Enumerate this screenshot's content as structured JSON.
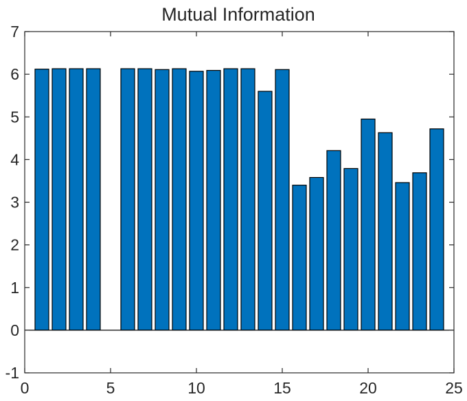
{
  "chart_data": {
    "type": "bar",
    "title": "Mutual Information",
    "xlabel": "",
    "ylabel": "",
    "x": [
      1,
      2,
      3,
      4,
      5,
      6,
      7,
      8,
      9,
      10,
      11,
      12,
      13,
      14,
      15,
      16,
      17,
      18,
      19,
      20,
      21,
      22,
      23,
      24
    ],
    "values": [
      6.12,
      6.13,
      6.13,
      6.13,
      0,
      6.13,
      6.13,
      6.11,
      6.13,
      6.07,
      6.09,
      6.13,
      6.13,
      5.6,
      6.11,
      3.4,
      3.58,
      4.21,
      3.79,
      4.95,
      4.63,
      3.46,
      3.69,
      4.72
    ],
    "xlim": [
      0,
      25
    ],
    "ylim": [
      -1,
      7
    ],
    "xticks": [
      0,
      5,
      10,
      15,
      20,
      25
    ],
    "yticks": [
      -1,
      0,
      1,
      2,
      3,
      4,
      5,
      6,
      7
    ],
    "grid": false,
    "legend": "none",
    "colors": {
      "bar_fill": "#0072BD",
      "bar_edge": "#000000",
      "axis": "#262626",
      "background": "#ffffff"
    }
  }
}
